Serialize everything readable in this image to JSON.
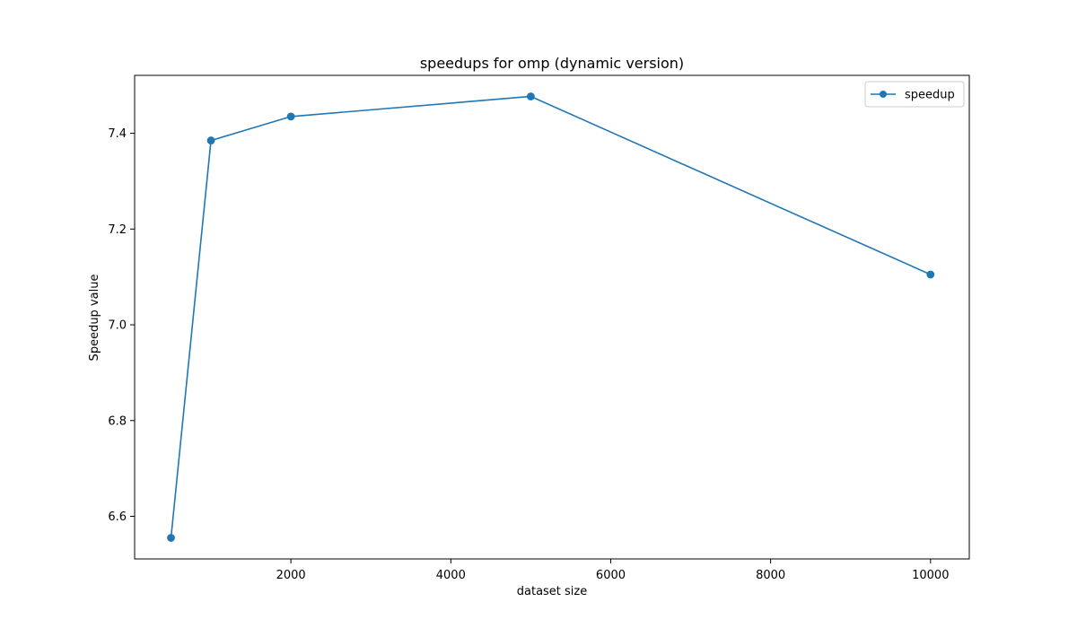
{
  "chart_data": {
    "type": "line",
    "title": "speedups for omp (dynamic version)",
    "xlabel": "dataset size",
    "ylabel": "Speedup value",
    "x": [
      500,
      1000,
      2000,
      5000,
      10000
    ],
    "series": [
      {
        "name": "speedup",
        "values": [
          6.555,
          7.385,
          7.435,
          7.477,
          7.105
        ],
        "color": "#1f77b4",
        "marker": "circle"
      }
    ],
    "xlim": [
      45,
      10485
    ],
    "ylim": [
      6.511,
      7.521
    ],
    "xticks": [
      2000,
      4000,
      6000,
      8000,
      10000
    ],
    "xtick_labels": [
      "2000",
      "4000",
      "6000",
      "8000",
      "10000"
    ],
    "yticks": [
      6.6,
      6.8,
      7.0,
      7.2,
      7.4
    ],
    "ytick_labels": [
      "6.6",
      "6.8",
      "7.0",
      "7.2",
      "7.4"
    ],
    "grid": false,
    "legend": {
      "position": "top-right",
      "entries": [
        "speedup"
      ]
    }
  }
}
